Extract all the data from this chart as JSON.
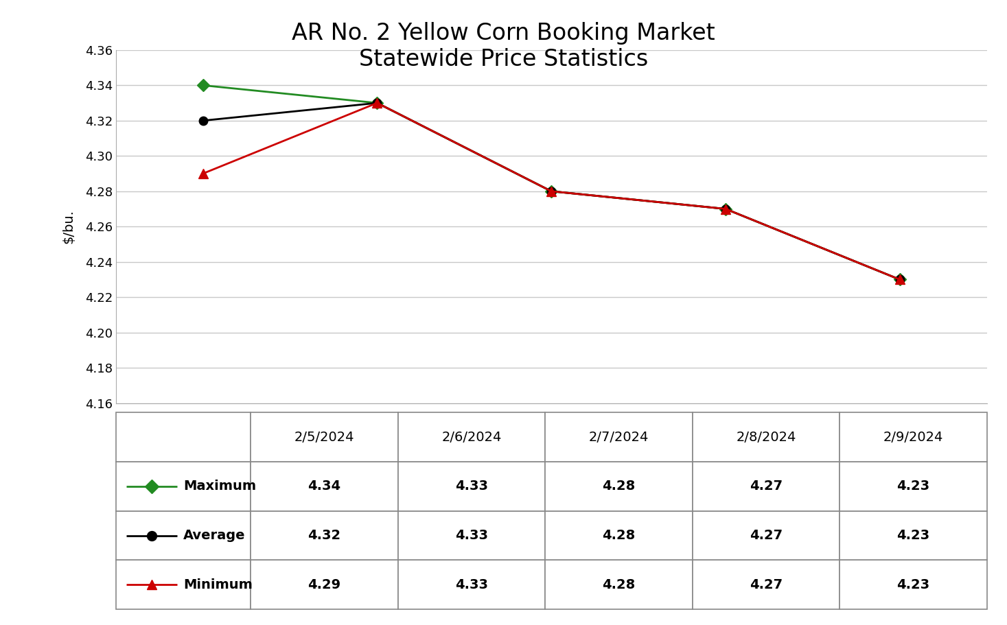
{
  "title": "AR No. 2 Yellow Corn Booking Market\nStatewide Price Statistics",
  "ylabel": "$/bu.",
  "dates": [
    "2/5/2024",
    "2/6/2024",
    "2/7/2024",
    "2/8/2024",
    "2/9/2024"
  ],
  "maximum": [
    4.34,
    4.33,
    4.28,
    4.27,
    4.23
  ],
  "average": [
    4.32,
    4.33,
    4.28,
    4.27,
    4.23
  ],
  "minimum": [
    4.29,
    4.33,
    4.28,
    4.27,
    4.23
  ],
  "max_color": "#228B22",
  "avg_color": "#000000",
  "min_color": "#CC0000",
  "ylim_min": 4.16,
  "ylim_max": 4.36,
  "ytick_step": 0.02,
  "background_color": "#ffffff",
  "grid_color": "#c8c8c8",
  "title_fontsize": 24,
  "axis_label_fontsize": 14,
  "tick_fontsize": 13,
  "table_fontsize": 14,
  "legend_fontsize": 14,
  "col_widths": [
    0.155,
    0.169,
    0.169,
    0.169,
    0.169,
    0.169
  ]
}
